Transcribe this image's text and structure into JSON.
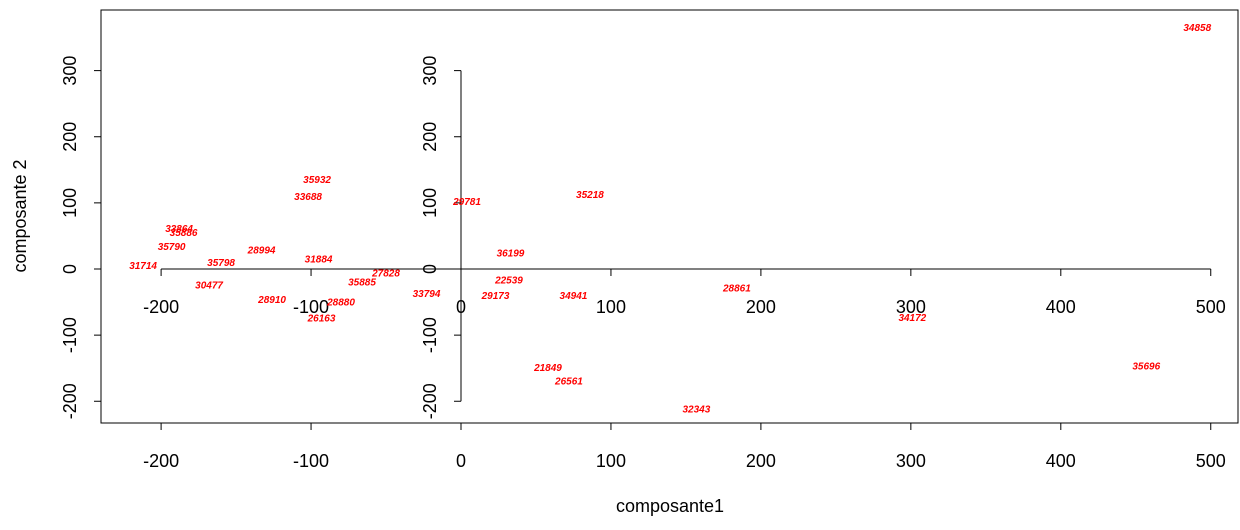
{
  "chart_data": {
    "type": "scatter",
    "title": "",
    "xlabel": "composante1",
    "ylabel": "composante 2",
    "xlim": [
      -240,
      520
    ],
    "ylim": [
      -233,
      383
    ],
    "xticks": [
      -200,
      -100,
      0,
      100,
      200,
      300,
      400,
      500
    ],
    "yticks": [
      -200,
      -100,
      0,
      100,
      200,
      300
    ],
    "grid": false,
    "legend": "none",
    "inner_axes": {
      "xticks": [
        -200,
        -100,
        0,
        100,
        200,
        300,
        400,
        500
      ],
      "yticks": [
        -200,
        -100,
        0,
        100,
        200,
        300
      ],
      "y_range": [
        -200,
        300
      ]
    },
    "point_color": "#ff0000",
    "points": [
      {
        "label": "34858",
        "x": 491,
        "y": 365
      },
      {
        "label": "35932",
        "x": -96,
        "y": 135
      },
      {
        "label": "33688",
        "x": -102,
        "y": 110
      },
      {
        "label": "35218",
        "x": 86,
        "y": 113
      },
      {
        "label": "29781",
        "x": 4,
        "y": 102
      },
      {
        "label": "33864",
        "x": -188,
        "y": 61
      },
      {
        "label": "35886",
        "x": -185,
        "y": 55
      },
      {
        "label": "35790",
        "x": -193,
        "y": 34
      },
      {
        "label": "28994",
        "x": -133,
        "y": 29
      },
      {
        "label": "36199",
        "x": 33,
        "y": 24
      },
      {
        "label": "31884",
        "x": -95,
        "y": 15
      },
      {
        "label": "35798",
        "x": -160,
        "y": 10
      },
      {
        "label": "31714",
        "x": -212,
        "y": 5
      },
      {
        "label": "27828",
        "x": -50,
        "y": -6
      },
      {
        "label": "22539",
        "x": 32,
        "y": -17
      },
      {
        "label": "35885",
        "x": -66,
        "y": -20
      },
      {
        "label": "30477",
        "x": -168,
        "y": -24
      },
      {
        "label": "28861",
        "x": 184,
        "y": -29
      },
      {
        "label": "33794",
        "x": -23,
        "y": -37
      },
      {
        "label": "29173",
        "x": 23,
        "y": -40
      },
      {
        "label": "34941",
        "x": 75,
        "y": -40
      },
      {
        "label": "28910",
        "x": -126,
        "y": -46
      },
      {
        "label": "28880",
        "x": -80,
        "y": -50
      },
      {
        "label": "26163",
        "x": -93,
        "y": -74
      },
      {
        "label": "34172",
        "x": 301,
        "y": -73
      },
      {
        "label": "21849",
        "x": 58,
        "y": -149
      },
      {
        "label": "35696",
        "x": 457,
        "y": -147
      },
      {
        "label": "26561",
        "x": 72,
        "y": -169
      },
      {
        "label": "32343",
        "x": 157,
        "y": -212
      }
    ]
  }
}
